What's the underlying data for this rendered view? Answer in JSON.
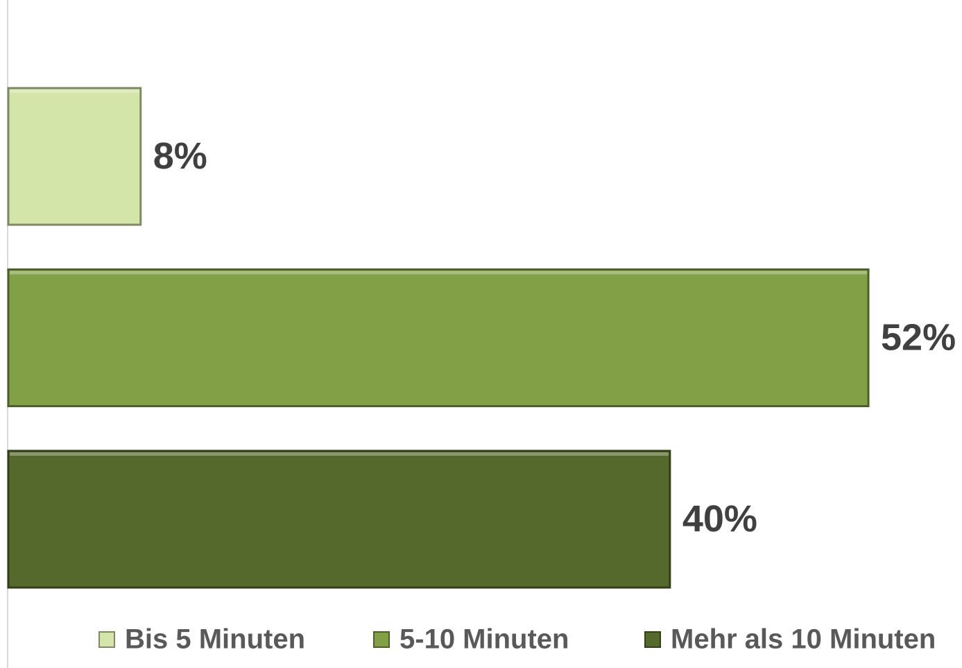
{
  "chart_data": {
    "type": "bar",
    "orientation": "horizontal",
    "series": [
      {
        "name": "Bis 5 Minuten",
        "color": "#d3e5a9",
        "values": [
          8
        ],
        "value_labels": [
          "8%"
        ]
      },
      {
        "name": "5-10 Minuten",
        "color": "#82a046",
        "values": [
          52
        ],
        "value_labels": [
          "52%"
        ]
      },
      {
        "name": "Mehr als 10 Minuten",
        "color": "#56692c",
        "values": [
          40
        ],
        "value_labels": [
          "40%"
        ]
      }
    ],
    "legend": "bottom"
  }
}
